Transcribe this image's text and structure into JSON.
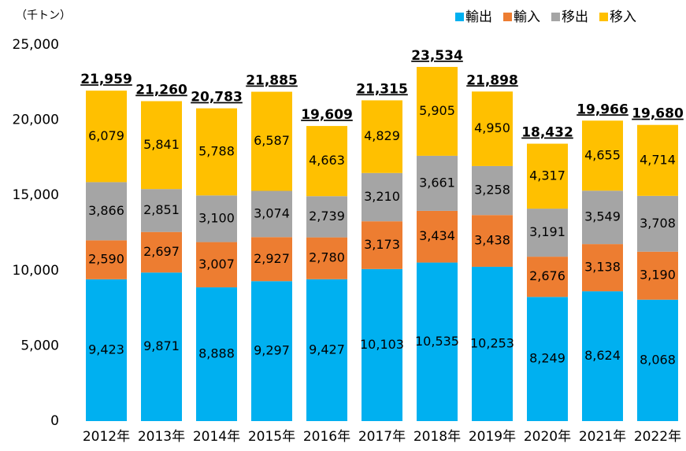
{
  "chart_data": {
    "type": "stacked_bar",
    "y_label": "（千トン）",
    "categories": [
      "2012年",
      "2013年",
      "2014年",
      "2015年",
      "2016年",
      "2017年",
      "2018年",
      "2019年",
      "2020年",
      "2021年",
      "2022年"
    ],
    "series": [
      {
        "name": "輸出",
        "color": "#00b0f0",
        "values": [
          9423,
          9871,
          8888,
          9297,
          9427,
          10103,
          10535,
          10253,
          8249,
          8624,
          8068
        ],
        "value_labels": [
          "9,423",
          "9,871",
          "8,888",
          "9,297",
          "9,427",
          "10,103",
          "10,535",
          "10,253",
          "8,249",
          "8,624",
          "8,068"
        ]
      },
      {
        "name": "輸入",
        "color": "#ed7d31",
        "values": [
          2590,
          2697,
          3007,
          2927,
          2780,
          3173,
          3434,
          3438,
          2676,
          3138,
          3190
        ],
        "value_labels": [
          "2,590",
          "2,697",
          "3,007",
          "2,927",
          "2,780",
          "3,173",
          "3,434",
          "3,438",
          "2,676",
          "3,138",
          "3,190"
        ]
      },
      {
        "name": "移出",
        "color": "#a5a5a5",
        "values": [
          3866,
          2851,
          3100,
          3074,
          2739,
          3210,
          3661,
          3258,
          3191,
          3549,
          3708
        ],
        "value_labels": [
          "3,866",
          "2,851",
          "3,100",
          "3,074",
          "2,739",
          "3,210",
          "3,661",
          "3,258",
          "3,191",
          "3,549",
          "3,708"
        ]
      },
      {
        "name": "移入",
        "color": "#ffc000",
        "values": [
          6079,
          5841,
          5788,
          6587,
          4663,
          4829,
          5905,
          4950,
          4317,
          4655,
          4714
        ],
        "value_labels": [
          "6,079",
          "5,841",
          "5,788",
          "6,587",
          "4,663",
          "4,829",
          "5,905",
          "4,950",
          "4,317",
          "4,655",
          "4,714"
        ]
      }
    ],
    "totals": [
      21959,
      21260,
      20783,
      21885,
      19609,
      21315,
      23534,
      21898,
      18432,
      19966,
      19680
    ],
    "total_labels": [
      "21,959",
      "21,260",
      "20,783",
      "21,885",
      "19,609",
      "21,315",
      "23,534",
      "21,898",
      "18,432",
      "19,966",
      "19,680"
    ],
    "ylim": [
      0,
      25000
    ],
    "yticks": [
      0,
      {
        "value": 5000,
        "label": "5,000"
      },
      {
        "value": 10000,
        "label": "10,000"
      },
      {
        "value": 15000,
        "label": "15,000"
      },
      {
        "value": 20000,
        "label": "20,000"
      },
      {
        "value": 25000,
        "label": "25,000"
      }
    ],
    "legend": "top-right"
  }
}
